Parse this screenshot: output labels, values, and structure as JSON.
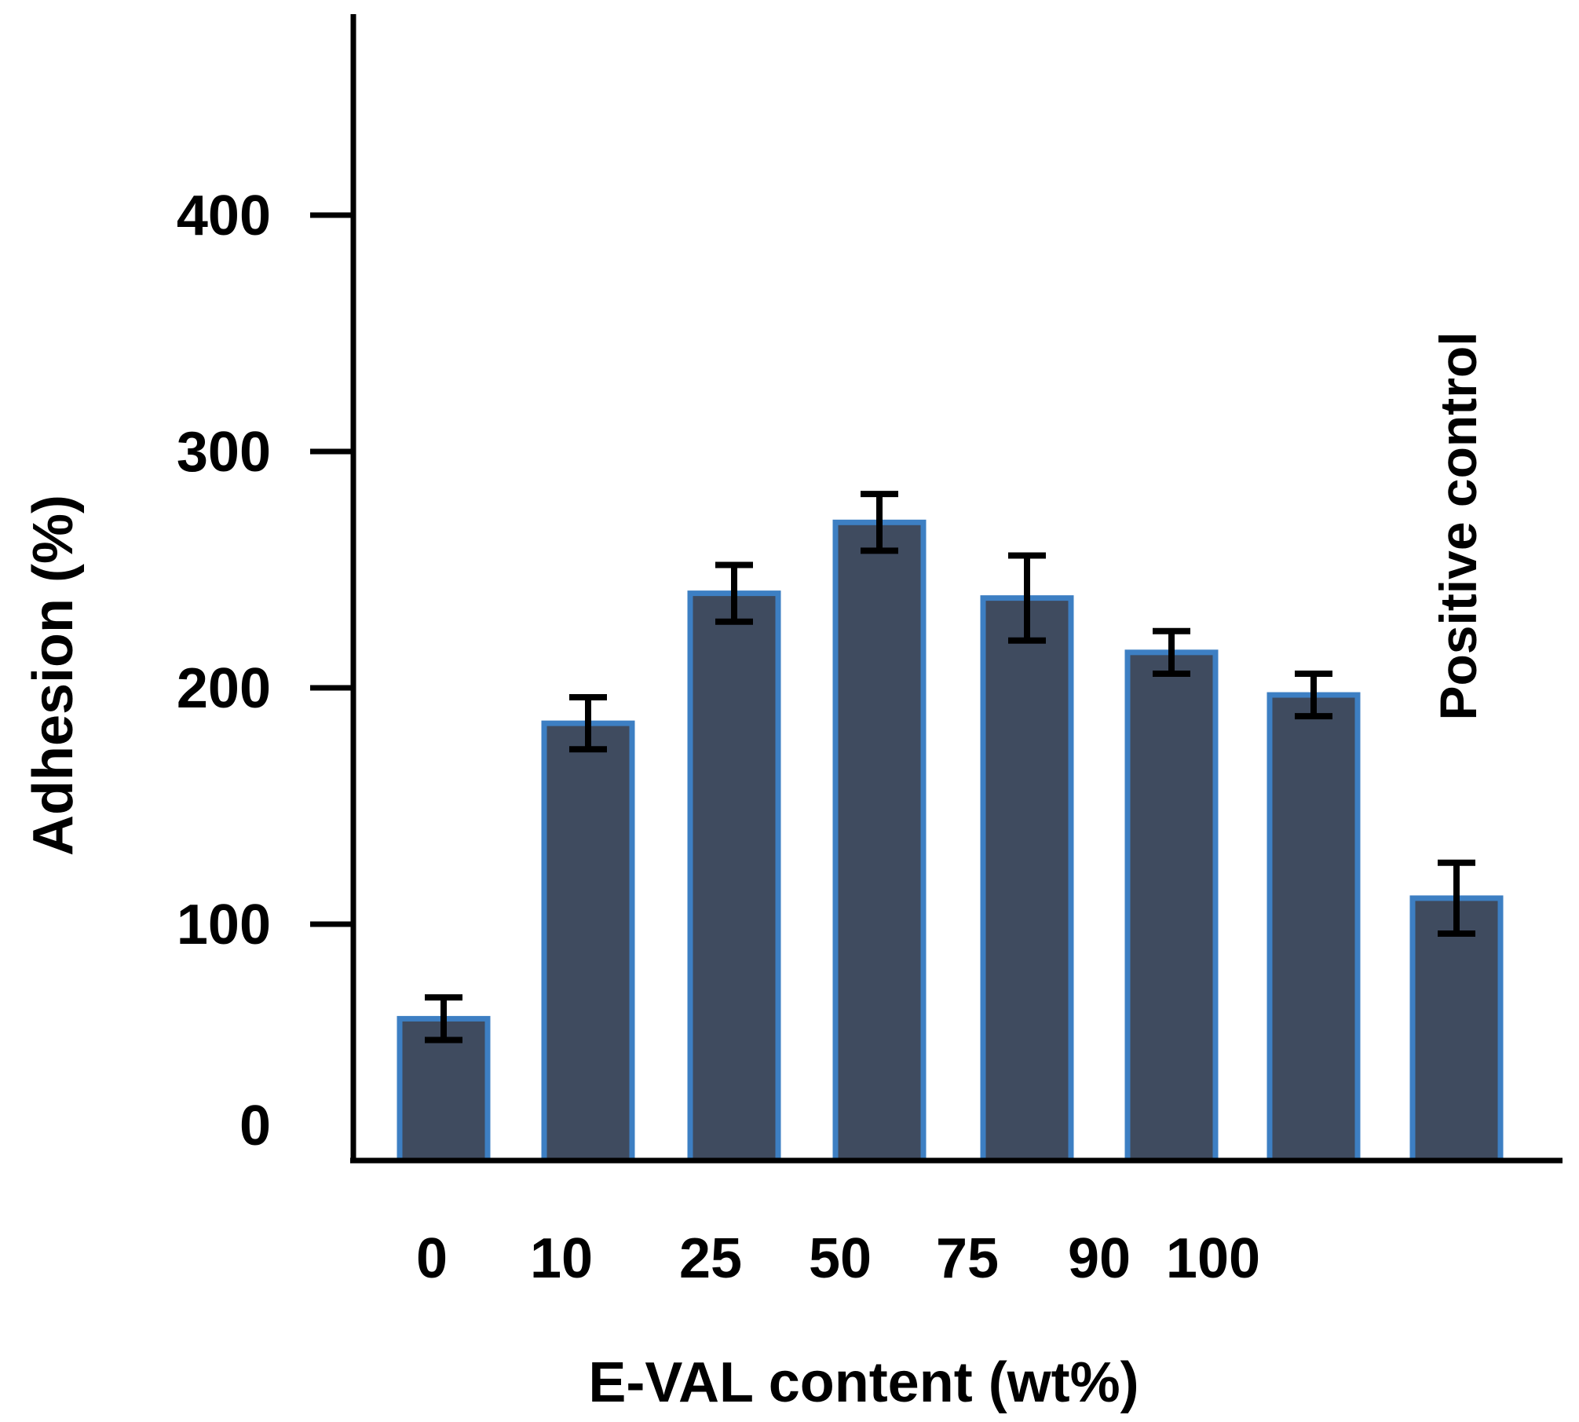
{
  "chart_data": {
    "type": "bar",
    "title": "",
    "xlabel": "E-VAL content (wt%)",
    "ylabel": "Adhesion (%)",
    "ylim": [
      0,
      470
    ],
    "yticks": [
      0,
      100,
      200,
      300,
      400
    ],
    "grid": false,
    "legend": "none",
    "categories": [
      "0",
      "10",
      "25",
      "50",
      "75",
      "90",
      "100",
      "Positive control"
    ],
    "x_tick_labels": [
      "0",
      "10",
      "25",
      "50",
      "75",
      "90",
      "100"
    ],
    "values": [
      60,
      185,
      240,
      270,
      238,
      215,
      197,
      111
    ],
    "errors": [
      9,
      11,
      12,
      12,
      18,
      9,
      9,
      15
    ],
    "annotation": "Positive control",
    "colors": {
      "bar_fill": "#3f4b5f",
      "bar_edge": "#3d7fc3",
      "error_bar": "#000000",
      "axis": "#000000"
    }
  }
}
